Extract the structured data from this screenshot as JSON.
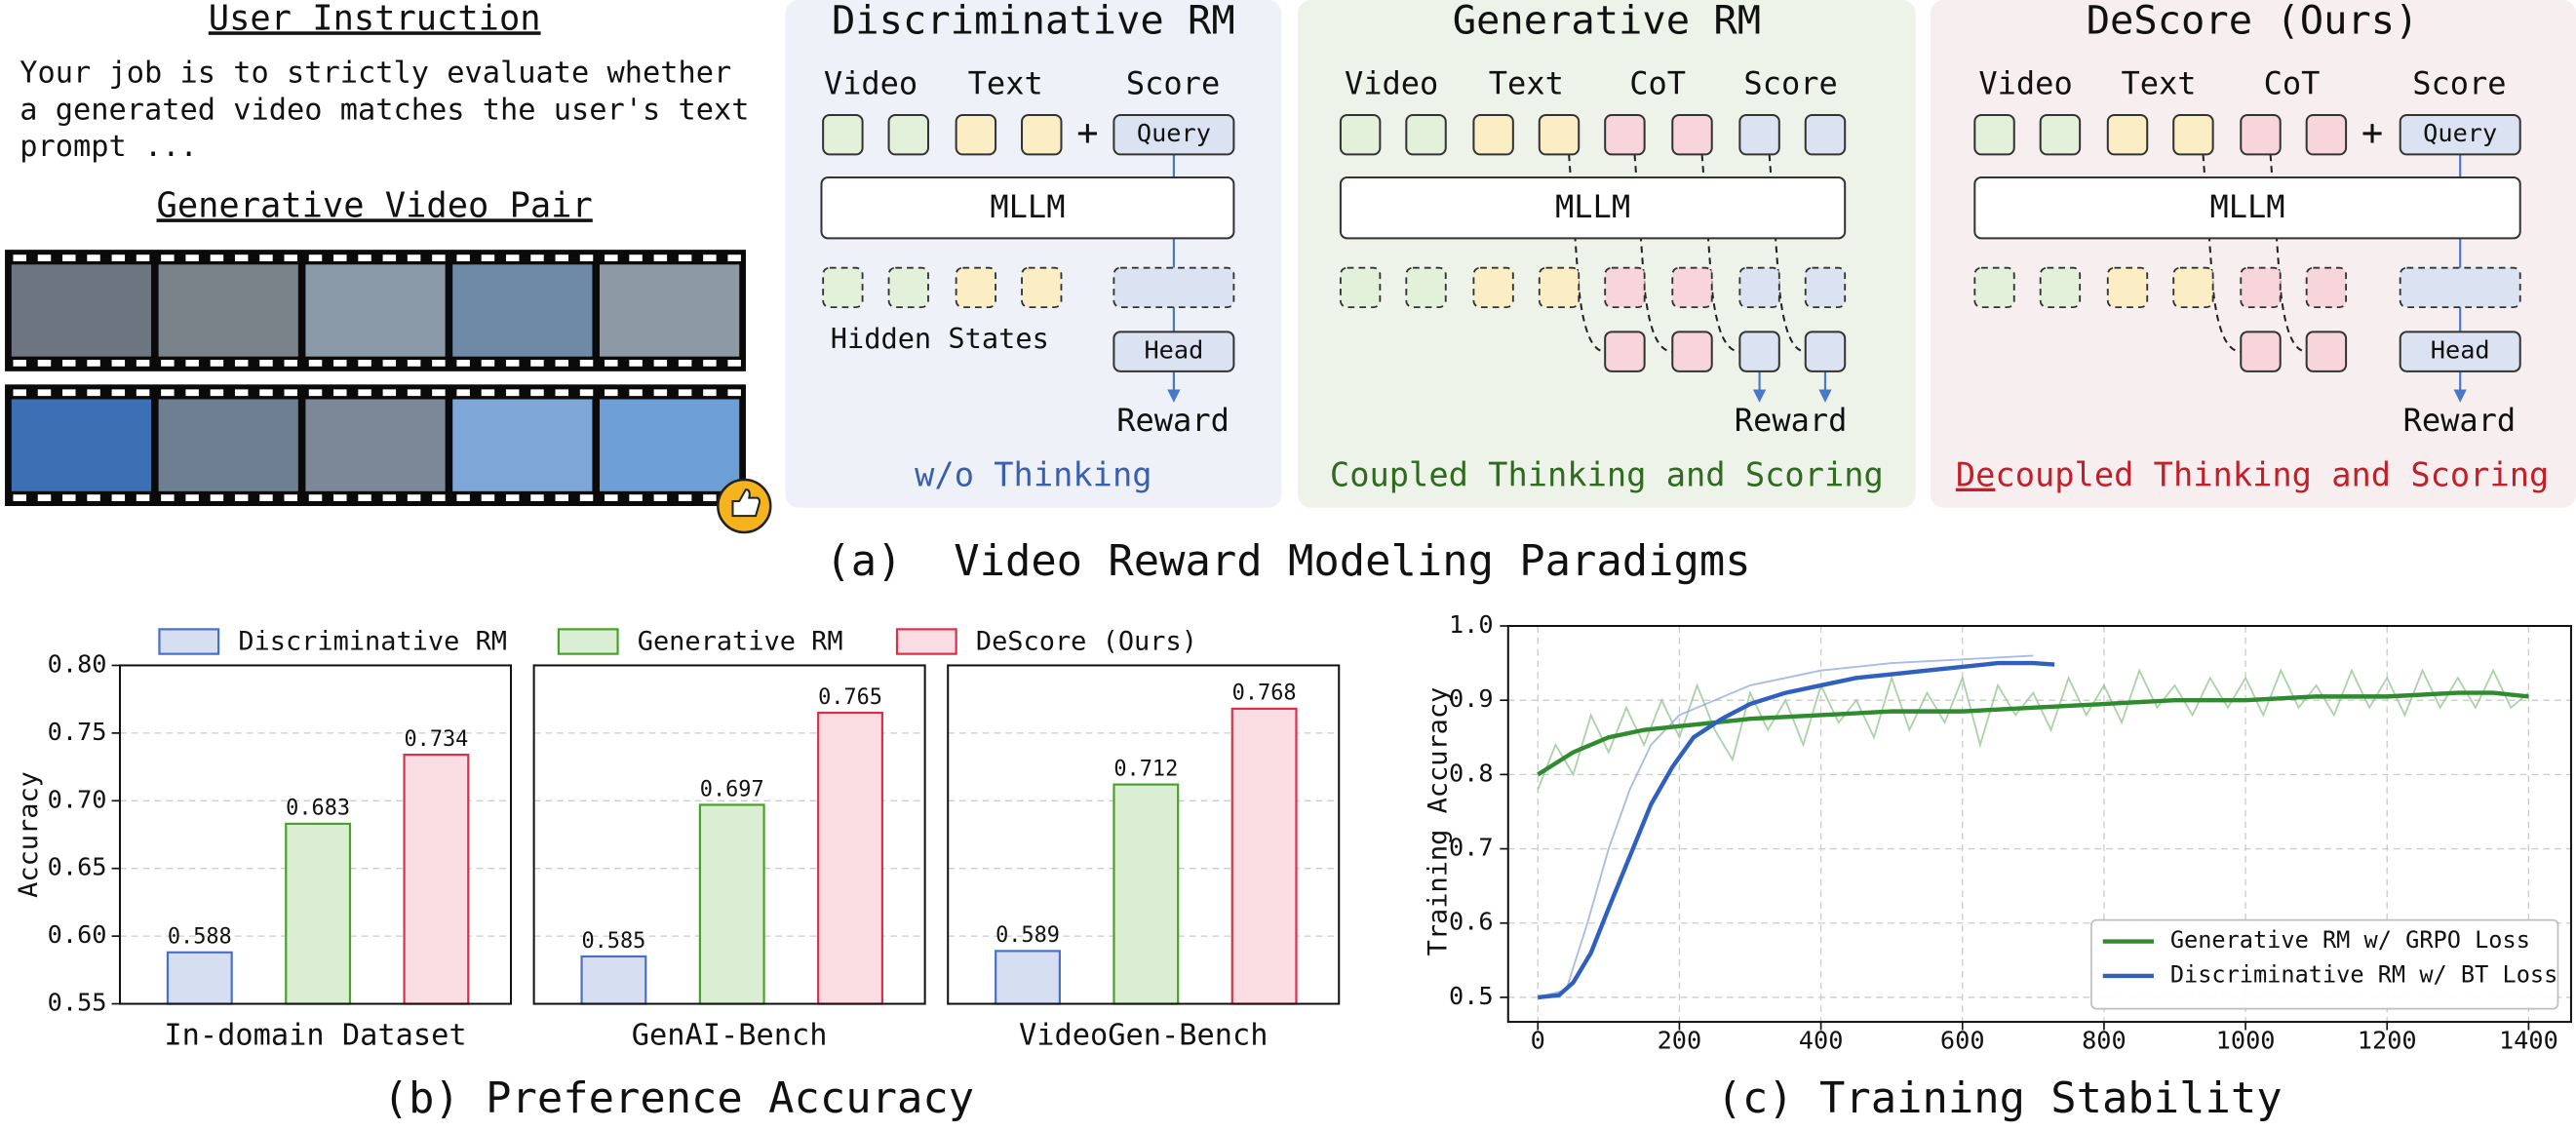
{
  "figure_a": {
    "user_instruction": {
      "title": "User Instruction",
      "lines": [
        "Your job is to strictly evaluate whether",
        "a generated video matches the user's text",
        "prompt ..."
      ],
      "pair_title": "Generative Video Pair"
    },
    "paradigms": [
      {
        "title": "Discriminative RM",
        "inputs": [
          "Video",
          "Text",
          "Score"
        ],
        "plus": "+",
        "query": "Query",
        "model": "MLLM",
        "hidden": "Hidden States",
        "head": "Head",
        "output": "Reward",
        "caption": [
          "w/o Thinking"
        ]
      },
      {
        "title": "Generative RM",
        "inputs": [
          "Video",
          "Text",
          "CoT",
          "Score"
        ],
        "model": "MLLM",
        "output": "Reward",
        "caption": [
          "Coupled Thinking and Scoring"
        ]
      },
      {
        "title": "DeScore (Ours)",
        "inputs": [
          "Video",
          "Text",
          "CoT",
          "Score"
        ],
        "plus": "+",
        "query": "Query",
        "model": "MLLM",
        "head": "Head",
        "output": "Reward",
        "caption": [
          "De",
          "coupled Thinking and Scoring"
        ]
      }
    ],
    "caption": "(a)  Video Reward Modeling Paradigms"
  },
  "chart_data": [
    {
      "type": "bar",
      "caption": "(b) Preference Accuracy",
      "ylabel": "Accuracy",
      "categories": [
        "In-domain Dataset",
        "GenAI-Bench",
        "VideoGen-Bench"
      ],
      "series": [
        {
          "name": "Discriminative RM",
          "color": "#4a6fc8",
          "fill": "#d6def2",
          "values": [
            0.588,
            0.585,
            0.589
          ]
        },
        {
          "name": "Generative RM",
          "color": "#4aa02c",
          "fill": "#d9eed3",
          "values": [
            0.683,
            0.697,
            0.712
          ]
        },
        {
          "name": "DeScore (Ours)",
          "color": "#d9304a",
          "fill": "#f9dde2",
          "values": [
            0.734,
            0.765,
            0.768
          ]
        }
      ],
      "ylim": [
        0.55,
        0.8
      ],
      "yticks": [
        0.55,
        {
          "value": 0.6,
          "label": "0.60"
        },
        0.65,
        {
          "value": 0.7,
          "label": "0.70"
        },
        0.75,
        {
          "value": 0.8,
          "label": "0.80"
        }
      ],
      "grid": true,
      "legend": "top"
    },
    {
      "type": "line",
      "caption": "(c) Training Stability",
      "ylabel": "Training Accuracy",
      "xlim": [
        -42,
        1460
      ],
      "ylim": [
        0.467,
        1.0
      ],
      "xticks": [
        0,
        200,
        400,
        600,
        800,
        1000,
        1200,
        1400
      ],
      "yticks": [
        0.5,
        0.6,
        0.7,
        0.8,
        0.9,
        {
          "value": 1,
          "label": "1.0"
        }
      ],
      "grid": true,
      "legend": "lower right",
      "series": [
        {
          "color": "#8fc48a",
          "x": [
            0,
            25,
            50,
            75,
            100,
            125,
            150,
            175,
            200,
            225,
            250,
            275,
            300,
            325,
            350,
            375,
            400,
            425,
            450,
            475,
            500,
            525,
            550,
            575,
            600,
            625,
            650,
            675,
            700,
            725,
            750,
            775,
            800,
            825,
            850,
            875,
            900,
            925,
            950,
            975,
            1000,
            1025,
            1050,
            1075,
            1100,
            1125,
            1150,
            1175,
            1200,
            1225,
            1250,
            1275,
            1300,
            1325,
            1350,
            1375,
            1400
          ],
          "values": [
            0.78,
            0.84,
            0.8,
            0.88,
            0.83,
            0.89,
            0.84,
            0.9,
            0.85,
            0.92,
            0.86,
            0.82,
            0.91,
            0.86,
            0.9,
            0.84,
            0.92,
            0.87,
            0.9,
            0.85,
            0.93,
            0.86,
            0.91,
            0.87,
            0.93,
            0.84,
            0.92,
            0.88,
            0.91,
            0.86,
            0.93,
            0.88,
            0.92,
            0.87,
            0.94,
            0.89,
            0.92,
            0.88,
            0.93,
            0.89,
            0.93,
            0.88,
            0.94,
            0.89,
            0.92,
            0.88,
            0.94,
            0.89,
            0.93,
            0.88,
            0.94,
            0.89,
            0.93,
            0.89,
            0.94,
            0.89,
            0.91
          ]
        },
        {
          "color": "#8aa6dd",
          "x": [
            0,
            40,
            70,
            100,
            130,
            160,
            200,
            250,
            300,
            400,
            500,
            600,
            700
          ],
          "values": [
            0.5,
            0.51,
            0.6,
            0.7,
            0.78,
            0.84,
            0.88,
            0.9,
            0.92,
            0.94,
            0.95,
            0.955,
            0.96
          ]
        },
        {
          "name": "Generative RM w/ GRPO Loss",
          "color": "#2e8b2e",
          "x": [
            0,
            25,
            50,
            100,
            150,
            200,
            250,
            300,
            400,
            500,
            600,
            700,
            800,
            900,
            1000,
            1100,
            1200,
            1300,
            1350,
            1400
          ],
          "values": [
            0.8,
            0.815,
            0.83,
            0.85,
            0.86,
            0.865,
            0.87,
            0.875,
            0.88,
            0.885,
            0.885,
            0.89,
            0.895,
            0.9,
            0.9,
            0.905,
            0.905,
            0.91,
            0.91,
            0.905
          ]
        },
        {
          "name": "Discriminative RM w/ BT Loss",
          "color": "#2f5fbf",
          "x": [
            0,
            30,
            50,
            75,
            100,
            130,
            160,
            190,
            220,
            260,
            300,
            350,
            400,
            450,
            500,
            550,
            600,
            650,
            700,
            730
          ],
          "values": [
            0.5,
            0.503,
            0.52,
            0.56,
            0.62,
            0.69,
            0.76,
            0.81,
            0.85,
            0.875,
            0.895,
            0.91,
            0.92,
            0.93,
            0.935,
            0.94,
            0.945,
            0.95,
            0.95,
            0.948
          ]
        }
      ]
    }
  ]
}
